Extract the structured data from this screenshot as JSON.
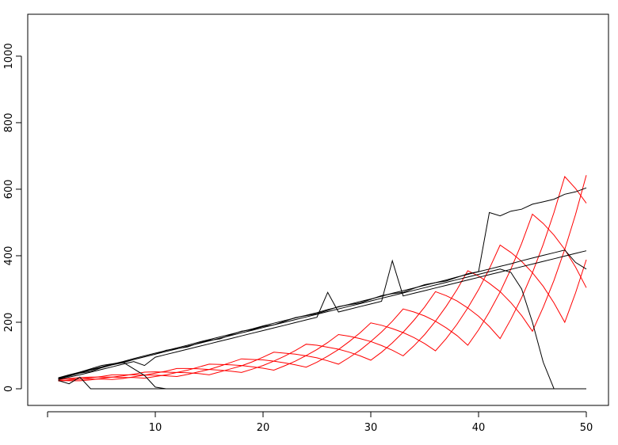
{
  "chart_data": {
    "type": "line",
    "x": [
      1,
      2,
      3,
      4,
      5,
      6,
      7,
      8,
      9,
      10,
      11,
      12,
      13,
      14,
      15,
      16,
      17,
      18,
      19,
      20,
      21,
      22,
      23,
      24,
      25,
      26,
      27,
      28,
      29,
      30,
      31,
      32,
      33,
      34,
      35,
      36,
      37,
      38,
      39,
      40,
      41,
      42,
      43,
      44,
      45,
      46,
      47,
      48,
      49,
      50
    ],
    "series": [
      {
        "color": "#ff0000",
        "values": [
          23,
          26,
          29,
          33,
          37,
          42,
          42,
          42,
          41,
          41,
          39,
          37,
          43,
          51,
          58,
          68,
          79,
          90,
          88,
          87,
          83,
          78,
          72,
          65,
          80,
          98,
          118,
          142,
          168,
          198,
          191,
          181,
          169,
          154,
          136,
          114,
          151,
          194,
          243,
          298,
          361,
          432,
          410,
          383,
          349,
          308,
          258,
          200,
          288,
          388
        ]
      },
      {
        "color": "#ff0000",
        "values": [
          29,
          29,
          29,
          29,
          29,
          28,
          31,
          36,
          41,
          47,
          53,
          61,
          61,
          60,
          58,
          56,
          53,
          49,
          59,
          70,
          83,
          98,
          115,
          134,
          131,
          125,
          119,
          110,
          99,
          86,
          110,
          138,
          170,
          206,
          246,
          292,
          280,
          264,
          243,
          218,
          187,
          151,
          209,
          274,
          349,
          434,
          530,
          638,
          602,
          558
        ]
      },
      {
        "color": "#ff0000",
        "values": [
          27,
          31,
          34,
          35,
          35,
          35,
          34,
          34,
          32,
          37,
          42,
          49,
          56,
          65,
          74,
          73,
          72,
          70,
          66,
          62,
          56,
          69,
          83,
          100,
          118,
          139,
          163,
          158,
          151,
          142,
          130,
          116,
          99,
          129,
          163,
          203,
          248,
          298,
          355,
          339,
          317,
          292,
          259,
          220,
          173,
          245,
          326,
          419,
          524,
          642
        ]
      },
      {
        "color": "#ff0000",
        "values": [
          25,
          24,
          24,
          27,
          31,
          35,
          39,
          44,
          50,
          51,
          50,
          49,
          48,
          46,
          42,
          51,
          60,
          69,
          81,
          95,
          110,
          107,
          104,
          99,
          93,
          84,
          74,
          94,
          116,
          142,
          171,
          203,
          240,
          231,
          219,
          203,
          183,
          160,
          131,
          177,
          231,
          291,
          360,
          437,
          525,
          497,
          462,
          419,
          366,
          304
        ]
      },
      {
        "color": "#000000",
        "values": [
          30,
          38,
          47,
          52,
          63,
          72,
          78,
          88,
          96,
          104,
          116,
          121,
          126,
          137,
          146,
          150,
          162,
          173,
          178,
          187,
          192,
          203,
          214,
          220,
          226,
          236,
          247,
          253,
          258,
          269,
          280,
          286,
          290,
          302,
          313,
          319,
          324,
          335,
          346,
          352,
          530,
          520,
          534,
          540,
          555,
          562,
          570,
          585,
          592,
          604
        ]
      },
      {
        "color": "#000000",
        "values": [
          28,
          35,
          42,
          50,
          58,
          66,
          74,
          82,
          70,
          95,
          103,
          111,
          119,
          127,
          135,
          143,
          151,
          159,
          167,
          175,
          183,
          191,
          199,
          207,
          215,
          290,
          231,
          239,
          247,
          255,
          263,
          385,
          279,
          287,
          295,
          303,
          311,
          319,
          327,
          335,
          343,
          351,
          359,
          367,
          375,
          383,
          391,
          399,
          407,
          415
        ]
      },
      {
        "color": "#000000",
        "values": [
          32,
          40,
          48,
          56,
          64,
          72,
          80,
          88,
          96,
          104,
          112,
          120,
          128,
          136,
          144,
          152,
          160,
          168,
          176,
          184,
          192,
          200,
          208,
          216,
          224,
          232,
          240,
          248,
          256,
          264,
          272,
          280,
          288,
          296,
          304,
          312,
          320,
          328,
          336,
          344,
          352,
          360,
          350,
          300,
          200,
          80,
          0,
          0,
          0,
          0
        ]
      },
      {
        "color": "#000000",
        "values": [
          25,
          15,
          35,
          0,
          0,
          0,
          0,
          0,
          0,
          0,
          0,
          0,
          0,
          0,
          0,
          0,
          0,
          0,
          0,
          0,
          0,
          0,
          0,
          0,
          0,
          0,
          0,
          0,
          0,
          0,
          0,
          0,
          0,
          0,
          0,
          0,
          0,
          0,
          0,
          0,
          0,
          0,
          0,
          0,
          0,
          0,
          0,
          0,
          0,
          0
        ]
      },
      {
        "color": "#000000",
        "values": [
          30,
          40,
          50,
          60,
          70,
          75,
          80,
          60,
          40,
          5,
          0,
          0,
          0,
          0,
          0,
          0,
          0,
          0,
          0,
          0,
          0,
          0,
          0,
          0,
          0,
          0,
          0,
          0,
          0,
          0,
          0,
          0,
          0,
          0,
          0,
          0,
          0,
          0,
          0,
          0,
          0,
          0,
          0,
          0,
          0,
          0,
          0,
          0,
          0,
          0
        ]
      },
      {
        "color": "#000000",
        "values": [
          33,
          42,
          50,
          58,
          66,
          74,
          82,
          91,
          99,
          107,
          115,
          123,
          131,
          140,
          148,
          156,
          164,
          172,
          180,
          189,
          197,
          205,
          213,
          221,
          229,
          238,
          246,
          254,
          262,
          270,
          278,
          287,
          295,
          303,
          311,
          319,
          327,
          336,
          344,
          352,
          360,
          368,
          376,
          385,
          393,
          401,
          409,
          417,
          380,
          360
        ]
      }
    ],
    "xlim": [
      -1.84,
      52.06
    ],
    "xticks": [
      10,
      20,
      30,
      40,
      50
    ],
    "ylim": [
      -50,
      1126
    ],
    "yticks": [
      0,
      200,
      400,
      600,
      800,
      1000
    ]
  }
}
